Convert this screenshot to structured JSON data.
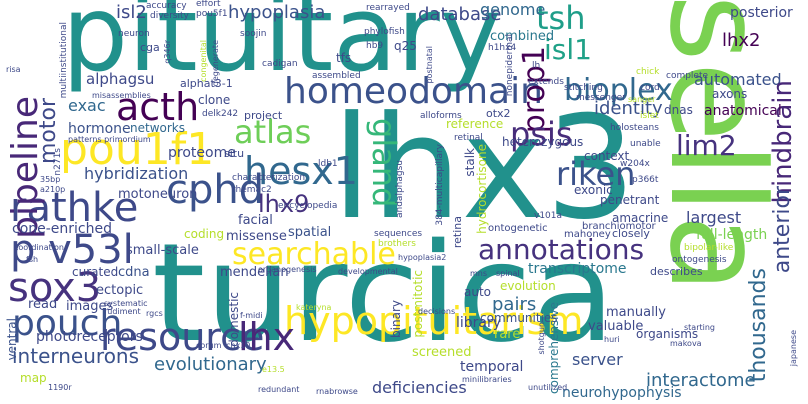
{
  "words": [
    {
      "text": "pituitary",
      "color": "#21918c"
    },
    {
      "text": "lhx3",
      "color": "#21918c"
    },
    {
      "text": "turcica",
      "color": "#21918c"
    },
    {
      "text": "sella",
      "color": "#7ad151"
    },
    {
      "text": "homeodomain",
      "color": "#3b528b"
    },
    {
      "text": "hypopituitarism",
      "color": "#fde725"
    },
    {
      "text": "acth",
      "color": "#440154"
    },
    {
      "text": "pou1f1",
      "color": "#fde725"
    },
    {
      "text": "hesx1",
      "color": "#31688e"
    },
    {
      "text": "cphd",
      "color": "#3b528b"
    },
    {
      "text": "rathke",
      "color": "#3e4989"
    },
    {
      "text": "pouch",
      "color": "#3b528b"
    },
    {
      "text": "resource",
      "color": "#3e4989"
    },
    {
      "text": "lhx",
      "color": "#482878"
    },
    {
      "text": "sox3",
      "color": "#46327e"
    },
    {
      "text": "p v53l",
      "color": "#3e4989"
    },
    {
      "text": "searchable",
      "color": "#fde725"
    },
    {
      "text": "annotations",
      "color": "#46327e"
    },
    {
      "text": "pipeline",
      "color": "#482878"
    },
    {
      "text": "atlas",
      "color": "#6ece58"
    },
    {
      "text": "gland",
      "color": "#35b779"
    },
    {
      "text": "tsh",
      "color": "#1f9e89"
    },
    {
      "text": "isl1",
      "color": "#1fa187"
    },
    {
      "text": "prop1",
      "color": "#440154"
    },
    {
      "text": "bioplex",
      "color": "#31688e"
    },
    {
      "text": "psis",
      "color": "#472c7a"
    },
    {
      "text": "riken",
      "color": "#3b528b"
    },
    {
      "text": "lim2",
      "color": "#46327e"
    },
    {
      "text": "lhx9",
      "color": "#46327e"
    },
    {
      "text": "isl2",
      "color": "#3e4989"
    },
    {
      "text": "hypoplasia",
      "color": "#3b528b"
    },
    {
      "text": "database",
      "color": "#3e4989"
    },
    {
      "text": "genome",
      "color": "#31688e"
    },
    {
      "text": "lhx2",
      "color": "#440154"
    },
    {
      "text": "automated",
      "color": "#3b528b"
    },
    {
      "text": "posterior",
      "color": "#3e4989"
    },
    {
      "text": "combined",
      "color": "#2a788e"
    },
    {
      "text": "hindbrain",
      "color": "#482878"
    },
    {
      "text": "anterior",
      "color": "#3e4989"
    },
    {
      "text": "motor",
      "color": "#3e4989"
    },
    {
      "text": "alphagsu",
      "color": "#3e4989"
    },
    {
      "text": "exac",
      "color": "#31688e"
    },
    {
      "text": "hormone",
      "color": "#3b528b"
    },
    {
      "text": "networks",
      "color": "#31688e"
    },
    {
      "text": "identity",
      "color": "#3b528b"
    },
    {
      "text": "anatomical",
      "color": "#440154"
    },
    {
      "text": "interneurons",
      "color": "#3b528b"
    },
    {
      "text": "evolutionary",
      "color": "#31688e"
    },
    {
      "text": "thousands",
      "color": "#31688e"
    },
    {
      "text": "interactome",
      "color": "#31688e"
    },
    {
      "text": "comprehensive",
      "color": "#2a788e"
    },
    {
      "text": "neurohypophysis",
      "color": "#31688e"
    },
    {
      "text": "deficiencies",
      "color": "#3e4989"
    },
    {
      "text": "server",
      "color": "#3b528b"
    },
    {
      "text": "transcriptome",
      "color": "#2a788e"
    },
    {
      "text": "full-length",
      "color": "#7ad151"
    },
    {
      "text": "largest",
      "color": "#3e4989"
    },
    {
      "text": "proteome",
      "color": "#3e4989"
    },
    {
      "text": "hybridization",
      "color": "#3b528b"
    },
    {
      "text": "motoneuron",
      "color": "#3e4989"
    },
    {
      "text": "facial",
      "color": "#3e4989"
    },
    {
      "text": "cone-enriched",
      "color": "#3e4989"
    },
    {
      "text": "small-scale",
      "color": "#3e4989"
    },
    {
      "text": "coding",
      "color": "#b5de2b"
    },
    {
      "text": "missense",
      "color": "#3e4989"
    },
    {
      "text": "spatial",
      "color": "#3b528b"
    },
    {
      "text": "mendelian",
      "color": "#3e4989"
    },
    {
      "text": "curated",
      "color": "#3e4989"
    },
    {
      "text": "cdna",
      "color": "#3b528b"
    },
    {
      "text": "ectopic",
      "color": "#3e4989"
    },
    {
      "text": "read",
      "color": "#3e4989"
    },
    {
      "text": "images",
      "color": "#3e4989"
    },
    {
      "text": "photoreceptors",
      "color": "#3e4989"
    },
    {
      "text": "ventral",
      "color": "#3b528b"
    },
    {
      "text": "map",
      "color": "#b5de2b"
    },
    {
      "text": "library",
      "color": "#3e4989"
    },
    {
      "text": "pairs",
      "color": "#31688e"
    },
    {
      "text": "screened",
      "color": "#b5de2b"
    },
    {
      "text": "communities",
      "color": "#3b528b"
    },
    {
      "text": "rare",
      "color": "#b5de2b"
    },
    {
      "text": "temporal",
      "color": "#3e4989"
    },
    {
      "text": "manually",
      "color": "#3e4989"
    },
    {
      "text": "valuable",
      "color": "#3e4989"
    },
    {
      "text": "organisms",
      "color": "#3e4989"
    },
    {
      "text": "evolution",
      "color": "#b5de2b"
    },
    {
      "text": "auto",
      "color": "#3e4989"
    },
    {
      "text": "binary",
      "color": "#3e4989"
    },
    {
      "text": "domestic",
      "color": "#3e4989"
    },
    {
      "text": "exonic",
      "color": "#3e4989"
    },
    {
      "text": "penetrant",
      "color": "#3e4989"
    },
    {
      "text": "context",
      "color": "#3e4989"
    },
    {
      "text": "heterozygous",
      "color": "#3e4989"
    },
    {
      "text": "amacrine",
      "color": "#3e4989"
    },
    {
      "text": "reference",
      "color": "#b5de2b"
    },
    {
      "text": "stalk",
      "color": "#3e4989"
    },
    {
      "text": "situ",
      "color": "#3e4989"
    },
    {
      "text": "project",
      "color": "#3e4989"
    },
    {
      "text": "clone",
      "color": "#3e4989"
    },
    {
      "text": "alphat3-1",
      "color": "#3e4989"
    },
    {
      "text": "cga",
      "color": "#3e4989"
    },
    {
      "text": "tfs",
      "color": "#3e4989"
    },
    {
      "text": "q25",
      "color": "#3e4989"
    },
    {
      "text": "axons",
      "color": "#3e4989"
    },
    {
      "text": "dnas",
      "color": "#3e4989"
    },
    {
      "text": "describes",
      "color": "#3e4989"
    },
    {
      "text": "otx2",
      "color": "#3e4989"
    },
    {
      "text": "hydrocortisone",
      "color": "#b5de2b"
    },
    {
      "text": "postmitotic",
      "color": "#b5de2b"
    },
    {
      "text": "retina",
      "color": "#3e4989"
    },
    {
      "text": "ontogenetic",
      "color": "#3e4989"
    },
    {
      "text": "branchiomotor",
      "color": "#3e4989"
    },
    {
      "text": "ontogenesis",
      "color": "#3e4989"
    },
    {
      "text": "bipolar-like",
      "color": "#b5de2b"
    },
    {
      "text": "closely",
      "color": "#3e4989"
    },
    {
      "text": "mahoney",
      "color": "#3e4989"
    },
    {
      "text": "v101a",
      "color": "#3e4989"
    },
    {
      "text": "p366t",
      "color": "#3e4989"
    },
    {
      "text": "w204x",
      "color": "#3e4989"
    },
    {
      "text": "unable",
      "color": "#3e4989"
    },
    {
      "text": "retinal",
      "color": "#3e4989"
    },
    {
      "text": "holosteans",
      "color": "#3e4989"
    },
    {
      "text": "islet",
      "color": "#b5de2b"
    },
    {
      "text": "messenger",
      "color": "#3e4989"
    },
    {
      "text": "cord",
      "color": "#3e4989"
    },
    {
      "text": "complete",
      "color": "#3e4989"
    },
    {
      "text": "chick",
      "color": "#b5de2b"
    },
    {
      "text": "extends",
      "color": "#3e4989"
    },
    {
      "text": "nonepidermal",
      "color": "#3e4989"
    },
    {
      "text": "lh",
      "color": "#3e4989"
    },
    {
      "text": "h1hx4",
      "color": "#3e4989"
    },
    {
      "text": "hb9",
      "color": "#3e4989"
    },
    {
      "text": "soojin",
      "color": "#3e4989"
    },
    {
      "text": "neuron",
      "color": "#3e4989"
    },
    {
      "text": "rearrayed",
      "color": "#3e4989"
    },
    {
      "text": "effort",
      "color": "#3e4989"
    },
    {
      "text": "pou5f1",
      "color": "#3e4989"
    },
    {
      "text": "phylofish",
      "color": "#3e4989"
    },
    {
      "text": "accuracy",
      "color": "#3e4989"
    },
    {
      "text": "diversity",
      "color": "#3e4989"
    },
    {
      "text": "multiinstitutional",
      "color": "#3e4989"
    },
    {
      "text": "misassemblies",
      "color": "#3e4989"
    },
    {
      "text": "patterns primordium",
      "color": "#3e4989"
    },
    {
      "text": "delk242",
      "color": "#3e4989"
    },
    {
      "text": "cadigan",
      "color": "#3e4989"
    },
    {
      "text": "assembled",
      "color": "#3e4989"
    },
    {
      "text": "stitching",
      "color": "#3e4989"
    },
    {
      "text": "alloforms",
      "color": "#3e4989"
    },
    {
      "text": "sequences",
      "color": "#3e4989"
    },
    {
      "text": "brothers",
      "color": "#b5de2b"
    },
    {
      "text": "384-multicapillary",
      "color": "#3e4989"
    },
    {
      "text": "andalphagsu",
      "color": "#3e4989"
    },
    {
      "text": "encyclopedia",
      "color": "#3e4989"
    },
    {
      "text": "rhemac2",
      "color": "#3e4989"
    },
    {
      "text": "characterization",
      "color": "#3e4989"
    },
    {
      "text": "ldb1",
      "color": "#3e4989"
    },
    {
      "text": "n271s",
      "color": "#3e4989"
    },
    {
      "text": "35bp",
      "color": "#3e4989"
    },
    {
      "text": "a210p",
      "color": "#3e4989"
    },
    {
      "text": "coordination",
      "color": "#3e4989"
    },
    {
      "text": "fsh",
      "color": "#3e4989"
    },
    {
      "text": "systematic",
      "color": "#3e4989"
    },
    {
      "text": "rudiment",
      "color": "#3e4989"
    },
    {
      "text": "rgcs",
      "color": "#3e4989"
    },
    {
      "text": "1190r",
      "color": "#3e4989"
    },
    {
      "text": "redundant",
      "color": "#3e4989"
    },
    {
      "text": "rnabrowse",
      "color": "#3e4989"
    },
    {
      "text": "unutilized",
      "color": "#3e4989"
    },
    {
      "text": "minilibraries",
      "color": "#3e4989"
    },
    {
      "text": "shotgun",
      "color": "#3e4989"
    },
    {
      "text": "huri",
      "color": "#3e4989"
    },
    {
      "text": "makova",
      "color": "#3e4989"
    },
    {
      "text": "starting",
      "color": "#3e4989"
    },
    {
      "text": "japanese",
      "color": "#3e4989"
    },
    {
      "text": "corum",
      "color": "#3e4989"
    },
    {
      "text": "chx10",
      "color": "#3e4989"
    },
    {
      "text": "f-midi",
      "color": "#3e4989"
    },
    {
      "text": "kateryna",
      "color": "#b5de2b"
    },
    {
      "text": "organogenesis",
      "color": "#3e4989"
    },
    {
      "text": "developmental",
      "color": "#3e4989"
    },
    {
      "text": "decisions",
      "color": "#3e4989"
    },
    {
      "text": "mns",
      "color": "#3e4989"
    },
    {
      "text": "spinal",
      "color": "#3e4989"
    },
    {
      "text": "risa",
      "color": "#3e4989"
    },
    {
      "text": "postnatal",
      "color": "#3e4989"
    },
    {
      "text": "sanger",
      "color": "#b5de2b"
    },
    {
      "text": "congenital",
      "color": "#b5de2b"
    },
    {
      "text": "degenerate",
      "color": "#3e4989"
    },
    {
      "text": "q346r",
      "color": "#3e4989"
    },
    {
      "text": "e13.5",
      "color": "#b5de2b"
    },
    {
      "text": "hypoplasia2",
      "color": "#3e4989"
    }
  ]
}
